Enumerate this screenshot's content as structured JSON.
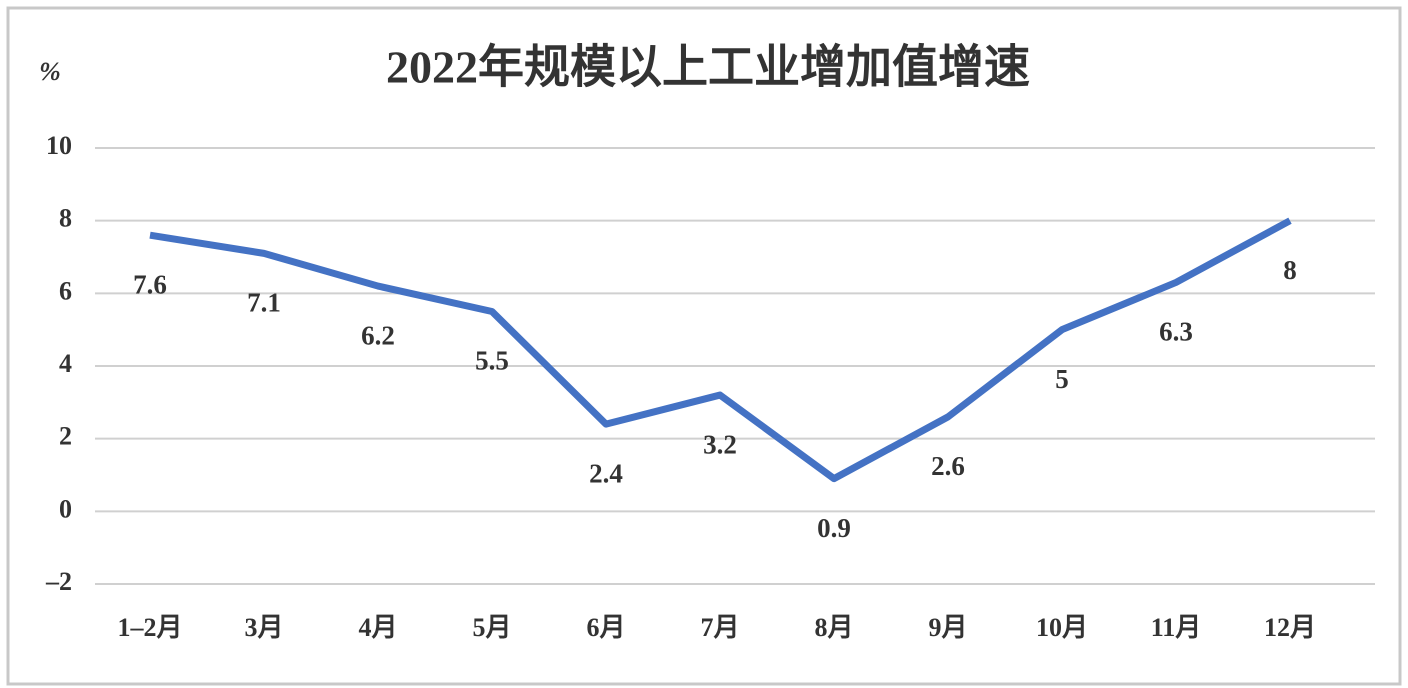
{
  "chart_data": {
    "type": "line",
    "title": "2022年规模以上工业增加值增速",
    "y_label": "%",
    "categories": [
      "1–2月",
      "3月",
      "4月",
      "5月",
      "6月",
      "7月",
      "8月",
      "9月",
      "10月",
      "11月",
      "12月"
    ],
    "series": [
      {
        "name": "规模以上工业增加值增速",
        "color": "#4472c4",
        "values": [
          7.6,
          7.1,
          6.2,
          5.5,
          2.4,
          3.2,
          0.9,
          2.6,
          5,
          6.3,
          8
        ]
      }
    ],
    "ylim": [
      -2,
      10
    ],
    "yticks": [
      {
        "value": -2,
        "label": "–2"
      },
      0,
      2,
      4,
      6,
      8,
      10
    ],
    "grid": true
  }
}
